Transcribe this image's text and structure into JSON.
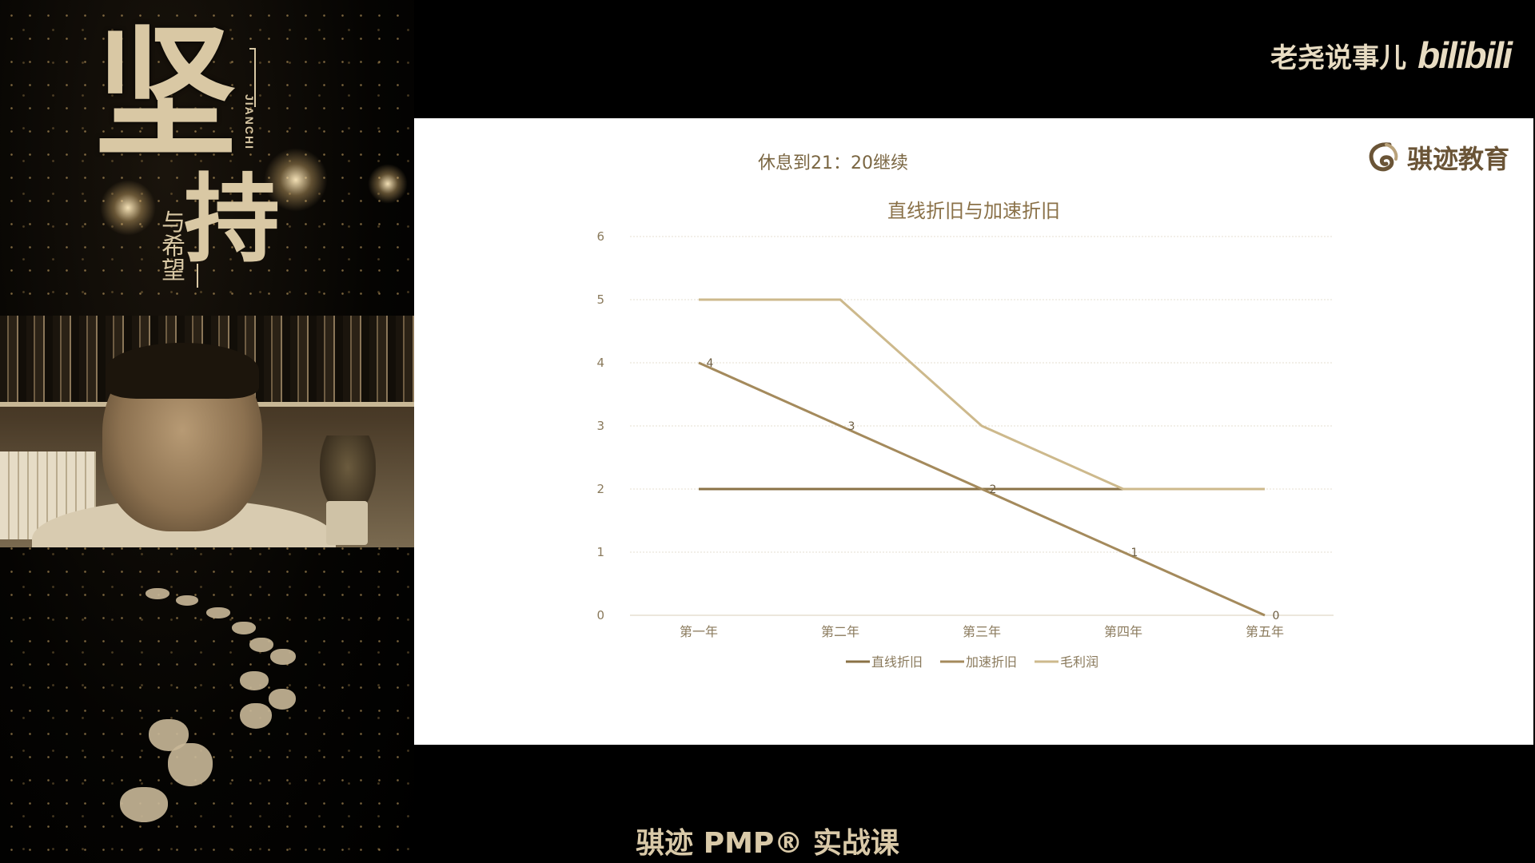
{
  "poster": {
    "big_char_1": "坚",
    "big_char_2": "持",
    "small_text": "与希望",
    "pinyin": "JIANCHI"
  },
  "brand": {
    "channel_name": "老尧说事儿",
    "site_logo": "bilibili"
  },
  "slide": {
    "notice": "休息到21：20继续",
    "logo_text": "骐迹教育",
    "logo_icon": "company-swirl-icon"
  },
  "chart_data": {
    "type": "line",
    "title": "直线折旧与加速折旧",
    "categories": [
      "第一年",
      "第二年",
      "第三年",
      "第四年",
      "第五年"
    ],
    "ylim": [
      0,
      6
    ],
    "yticks": [
      0,
      1,
      2,
      3,
      4,
      5,
      6
    ],
    "grid": true,
    "legend_position": "bottom",
    "series": [
      {
        "name": "直线折旧",
        "values": [
          2,
          2,
          2,
          2,
          2
        ],
        "color": "#8a7246",
        "labels": false
      },
      {
        "name": "加速折旧",
        "values": [
          4,
          3,
          2,
          1,
          0
        ],
        "color": "#a48a5c",
        "labels": true
      },
      {
        "name": "毛利润",
        "values": [
          5,
          5,
          3,
          2,
          2
        ],
        "color": "#cdb98c",
        "labels": false
      }
    ]
  },
  "caption": "骐迹 PMP® 实战课",
  "colors": {
    "gold": "#d9c8a4",
    "slide_bg": "#ffffff",
    "grid": "#e6dfd0",
    "axis_text": "#8a7a5c"
  }
}
